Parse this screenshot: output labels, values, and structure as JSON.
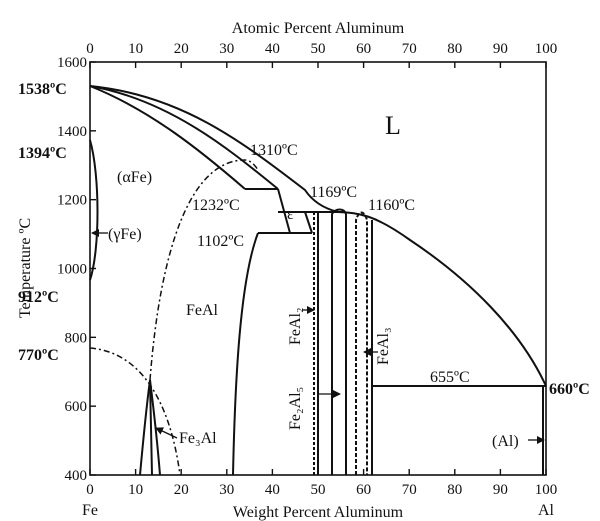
{
  "diagram": {
    "top_axis_title": "Atomic Percent Aluminum",
    "bottom_axis_title": "Weight Percent Aluminum",
    "left_axis_title": "Temperature ºC",
    "left_end_label": "Fe",
    "right_end_label": "Al",
    "top_ticks": [
      "0",
      "10",
      "20",
      "30",
      "40",
      "50",
      "60",
      "70",
      "80",
      "90",
      "100"
    ],
    "bottom_ticks": [
      "0",
      "10",
      "20",
      "30",
      "40",
      "50",
      "60",
      "70",
      "80",
      "90",
      "100"
    ],
    "left_ticks": [
      "1600",
      "1400",
      "1200",
      "1000",
      "800",
      "600",
      "400"
    ],
    "temperature_labels": {
      "fe_melting": "1538ºC",
      "fe_transition_high": "1394ºC",
      "fe_transition_low": "912ºC",
      "curie": "770ºC",
      "al_melting": "660ºC"
    },
    "annotations": {
      "t1310": "1310ºC",
      "t1232": "1232ºC",
      "t1102": "1102ºC",
      "t1169": "1169ºC",
      "t1160": "1160ºC",
      "t655": "655ºC"
    },
    "phases": {
      "liquid": "L",
      "alpha_fe": "(αFe)",
      "gamma_fe": "(γFe)",
      "feal": "FeAl",
      "epsilon": "ε",
      "fe3al": "Fe₃Al",
      "feal2": "FeAl₂",
      "fe2al5": "Fe₂Al₅",
      "feal3": "FeAl₃",
      "al": "(Al)"
    }
  }
}
